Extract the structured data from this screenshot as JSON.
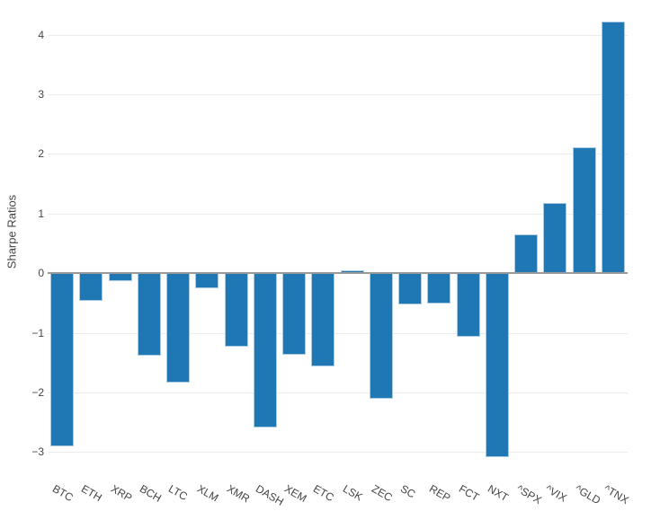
{
  "chart_data": {
    "type": "bar",
    "title": "",
    "xlabel": "",
    "ylabel": "Sharpe Ratios",
    "categories": [
      "BTC",
      "ETH",
      "XRP",
      "BCH",
      "LTC",
      "XLM",
      "XMR",
      "DASH",
      "XEM",
      "ETC",
      "LSK",
      "ZEC",
      "SC",
      "REP",
      "FCT",
      "NXT",
      "^SPX",
      "^VIX",
      "^GLD",
      "^TNX"
    ],
    "values": [
      -2.9,
      -0.47,
      -0.13,
      -1.39,
      -1.83,
      -0.25,
      -1.23,
      -2.59,
      -1.37,
      -1.56,
      0.05,
      -2.1,
      -0.53,
      -0.51,
      -1.06,
      -3.09,
      0.65,
      1.18,
      2.11,
      4.22
    ],
    "ylim": [
      -3.31,
      4.43
    ],
    "yticks": [
      {
        "value": 4,
        "label": "4"
      },
      {
        "value": 3,
        "label": "3"
      },
      {
        "value": 2,
        "label": "2"
      },
      {
        "value": 1,
        "label": "1"
      },
      {
        "value": 0,
        "label": "0"
      },
      {
        "value": -1,
        "label": "−1"
      },
      {
        "value": -2,
        "label": "−2"
      },
      {
        "value": -3,
        "label": "−3"
      }
    ],
    "grid": true,
    "legend_position": "none",
    "x_tick_rotation_deg": 30,
    "colors": {
      "bar_fill": "#1f77b4",
      "bar_edge": "#a9cbe3",
      "grid_line": "#ececec",
      "zero_line": "#999999",
      "text": "#444444",
      "background": "#ffffff"
    }
  }
}
